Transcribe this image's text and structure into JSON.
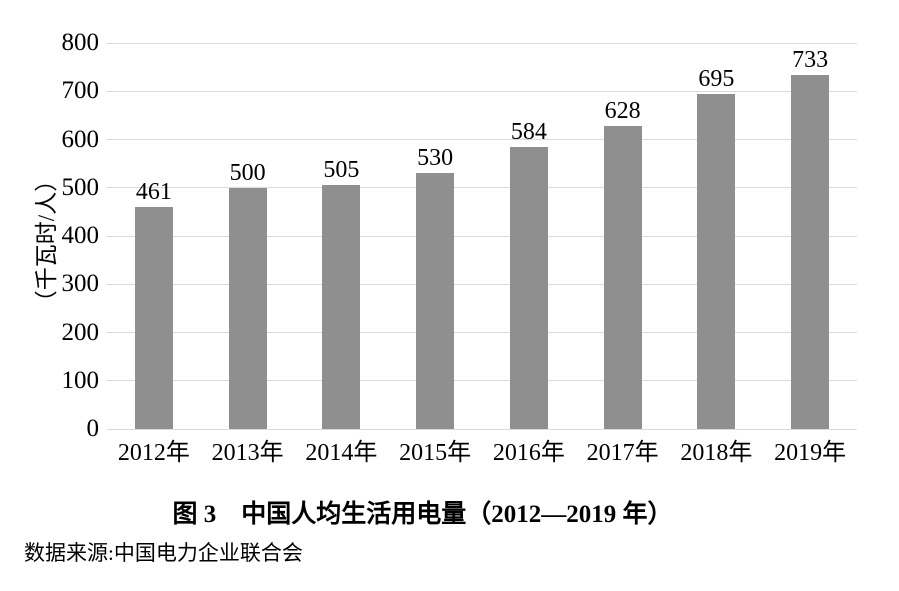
{
  "chart_data": {
    "type": "bar",
    "title": "图 3　中国人均生活用电量（2012—2019 年）",
    "source": "数据来源:中国电力企业联合会",
    "categories": [
      "2012年",
      "2013年",
      "2014年",
      "2015年",
      "2016年",
      "2017年",
      "2018年",
      "2019年"
    ],
    "values": [
      461,
      500,
      505,
      530,
      584,
      628,
      695,
      733
    ],
    "xlabel": "",
    "ylabel": "（千瓦时/人）",
    "ylim": [
      0,
      800
    ],
    "yticks": [
      0,
      100,
      200,
      300,
      400,
      500,
      600,
      700,
      800
    ],
    "grid": true,
    "legend": "none",
    "bar_color": "#8f8f8f",
    "gridline_color": "#dbdbdb",
    "text_color": "#000000"
  }
}
